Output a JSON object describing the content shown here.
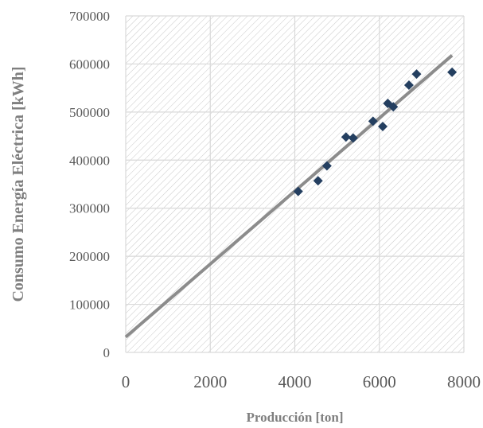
{
  "chart_data": {
    "type": "scatter",
    "title": "",
    "xlabel": "Producción [ton]",
    "ylabel": "Consumo  Energía Eléctrica [kWh]",
    "xlim": [
      0,
      8000
    ],
    "ylim": [
      0,
      700000
    ],
    "x_ticks": [
      0,
      2000,
      4000,
      6000,
      8000
    ],
    "y_ticks": [
      0,
      100000,
      200000,
      300000,
      400000,
      500000,
      600000,
      700000
    ],
    "grid": true,
    "legend": "none",
    "colors": {
      "marker": "#243f60",
      "trendline": "#8c8c8c",
      "grid": "#d9d9d9",
      "hatch": "#c8c8c8",
      "tick_text": "#595959",
      "axis_title": "#7f7f7f"
    },
    "series": [
      {
        "x": [
          4080,
          4550,
          4760,
          5210,
          5380,
          5850,
          6080,
          6200,
          6330,
          6700,
          6880,
          7720
        ],
        "y": [
          335000,
          357000,
          388000,
          448000,
          446000,
          481000,
          470000,
          518000,
          511000,
          556000,
          579000,
          583000
        ]
      }
    ],
    "trendline": {
      "x": [
        0,
        7720
      ],
      "y": [
        32000,
        618000
      ]
    }
  }
}
